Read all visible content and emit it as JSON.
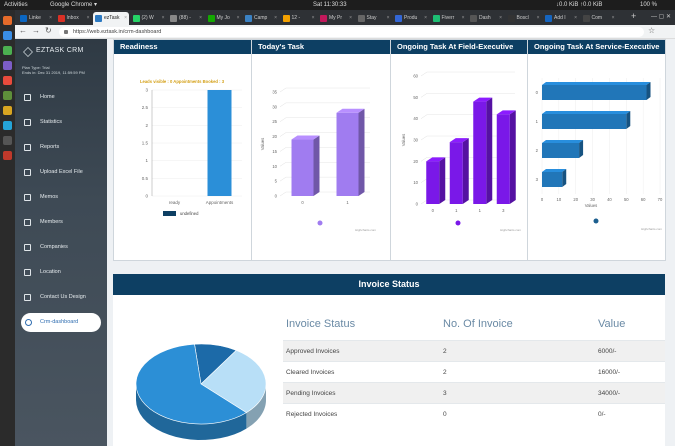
{
  "os": {
    "activities": "Activities",
    "app": "Google Chrome ▾",
    "clock": "Sat 11:30:33",
    "net": "↓0.0 KiB ↑0.0 KiB",
    "battery": "100 %"
  },
  "tabs": [
    {
      "label": "Linke",
      "color": "#0a66c2"
    },
    {
      "label": "Inbox",
      "color": "#d93025"
    },
    {
      "label": "ezTask",
      "color": "#2b79c2",
      "active": true
    },
    {
      "label": "(2) W",
      "color": "#25d366"
    },
    {
      "label": "(88) -",
      "color": "#888888"
    },
    {
      "label": "My Jo",
      "color": "#14a800"
    },
    {
      "label": "Camp",
      "color": "#3b82c4"
    },
    {
      "label": "12 -",
      "color": "#f4a100"
    },
    {
      "label": "My Pr",
      "color": "#c2185b"
    },
    {
      "label": "Stay",
      "color": "#666666"
    },
    {
      "label": "Produ",
      "color": "#3367d6"
    },
    {
      "label": "Fiverr",
      "color": "#1dbf73"
    },
    {
      "label": "Dash",
      "color": "#555555"
    },
    {
      "label": "Boscl",
      "color": "#333333"
    },
    {
      "label": "Add I",
      "color": "#1565c0"
    },
    {
      "label": "Com",
      "color": "#444444"
    }
  ],
  "url": "https://web.eztask.in/crm-dashboard",
  "sidebar": {
    "brand": "EZTASK CRM",
    "plan_type": "Plan Type: Trial",
    "plan_ends": "Ends in: Dec 31 2019, 11:59:59 PM",
    "items": [
      {
        "label": "Home"
      },
      {
        "label": "Statistics"
      },
      {
        "label": "Reports"
      },
      {
        "label": "Upload Excel File"
      },
      {
        "label": "Memos"
      },
      {
        "label": "Members"
      },
      {
        "label": "Companies"
      },
      {
        "label": "Location"
      },
      {
        "label": "Contact Us Design"
      },
      {
        "label": "Crm-dashboard",
        "active": true
      }
    ]
  },
  "cards": {
    "readiness": "Readiness",
    "todays_task": "Today's Task",
    "field_exec": "Ongoing Task At Field-Executive",
    "service_exec": "Ongoing Task At Service-Executive"
  },
  "chart_data": [
    {
      "type": "bar",
      "title": "Leads visible : 0  Appointments Booked : 3",
      "categories": [
        "ready",
        "Appointments"
      ],
      "values": [
        0,
        3
      ],
      "ylim": [
        0,
        3
      ],
      "yticks": [
        0,
        0.5,
        1,
        1.5,
        2,
        2.5,
        3
      ],
      "legend": "undefined",
      "color": "#2b8fd8"
    },
    {
      "type": "bar",
      "categories": [
        "0",
        "1"
      ],
      "values": [
        19,
        28
      ],
      "ylim": [
        0,
        35
      ],
      "yticks": [
        0,
        5,
        10,
        15,
        20,
        25,
        30,
        35
      ],
      "ylabel": "Values",
      "color": "#a07cf0",
      "credit": "Highcharts.com"
    },
    {
      "type": "bar",
      "categories": [
        "0",
        "1",
        "1",
        "3"
      ],
      "values": [
        20,
        29,
        48,
        42
      ],
      "ylim": [
        0,
        60
      ],
      "yticks": [
        0,
        10,
        20,
        30,
        40,
        50,
        60
      ],
      "ylabel": "Values",
      "color": "#7a18e8",
      "credit": "Highcharts.com"
    },
    {
      "type": "bar",
      "orientation": "horizontal",
      "categories": [
        "0",
        "1",
        "2",
        "3"
      ],
      "values": [
        62,
        50,
        22,
        12
      ],
      "xlim": [
        0,
        70
      ],
      "xticks": [
        0,
        10,
        20,
        30,
        40,
        50,
        60,
        70
      ],
      "xlabel": "Values",
      "color": "#2176b8",
      "credit": "Highcharts.com"
    }
  ],
  "invoice": {
    "title": "Invoice Status",
    "headers": [
      "Invoice Status",
      "No. Of Invoice",
      "Value"
    ],
    "rows": [
      {
        "status": "Approved Invoices",
        "count": "2",
        "value": "6000/-"
      },
      {
        "status": "Cleared Invoices",
        "count": "2",
        "value": "16000/-"
      },
      {
        "status": "Pending Invoices",
        "count": "3",
        "value": "34000/-"
      },
      {
        "status": "Rejected Invoices",
        "count": "0",
        "value": "0/-"
      }
    ],
    "pie": [
      {
        "value": 6000,
        "color": "#1c6aa8"
      },
      {
        "value": 16000,
        "color": "#b8dff7"
      },
      {
        "value": 34000,
        "color": "#2c8fd6"
      }
    ]
  }
}
